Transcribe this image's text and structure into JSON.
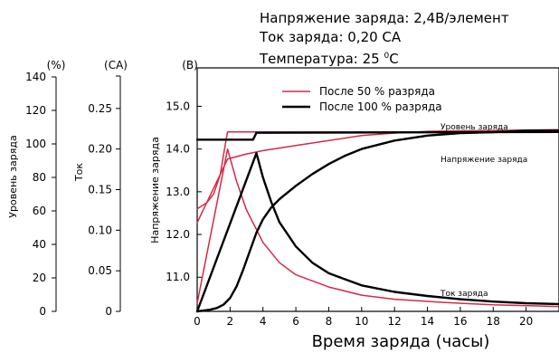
{
  "conditions": {
    "voltage": "Напряжение заряда: 2,4В/элемент",
    "current": "Ток заряда: 0,20 СА",
    "temp_prefix": "Температура: 25 ",
    "temp_sup": "0",
    "temp_suffix": "С"
  },
  "chart_data": {
    "type": "line",
    "xlabel": "Время заряда (часы)",
    "xlim": [
      0,
      22
    ],
    "x_ticks": [
      0,
      2,
      4,
      6,
      8,
      10,
      12,
      14,
      16,
      18,
      20
    ],
    "axes": {
      "charge": {
        "unit": "(%)",
        "label": "Уровень заряда",
        "range": [
          0,
          140
        ],
        "ticks": [
          0,
          20,
          40,
          60,
          80,
          100,
          120,
          140
        ]
      },
      "current": {
        "unit": "(СА)",
        "label": "Ток",
        "range": [
          0,
          0.3
        ],
        "ticks": [
          "0",
          "0.05",
          "0.10",
          "0.15",
          "0.20",
          "0.25"
        ]
      },
      "voltage": {
        "unit": "(В)",
        "label": "Напряжение заряда",
        "range": [
          10.2,
          15.9
        ],
        "ticks": [
          "11.0",
          "12.0",
          "13.0",
          "14.0",
          "15.0"
        ]
      }
    },
    "legend": [
      {
        "name": "После 50 % разряда",
        "color": "#d42a46"
      },
      {
        "name": "После 100 % разряда",
        "color": "#000000"
      }
    ],
    "annotations": [
      "Уровень заряда",
      "Напряжение заряда",
      "Ток заряда"
    ],
    "series": [
      {
        "scenario": "50",
        "quantity": "voltage",
        "color": "#d42a46",
        "points": [
          [
            0,
            12.6
          ],
          [
            0.6,
            12.75
          ],
          [
            1.0,
            12.95
          ],
          [
            1.4,
            13.4
          ],
          [
            1.75,
            14.2
          ],
          [
            1.85,
            14.4
          ],
          [
            22,
            14.4
          ]
        ]
      },
      {
        "scenario": "50",
        "quantity": "current",
        "color": "#d42a46",
        "points": [
          [
            0,
            0.01
          ],
          [
            1.85,
            0.2
          ],
          [
            2.4,
            0.16
          ],
          [
            3.0,
            0.125
          ],
          [
            4.0,
            0.085
          ],
          [
            5.0,
            0.06
          ],
          [
            6.0,
            0.045
          ],
          [
            8.0,
            0.03
          ],
          [
            10,
            0.02
          ],
          [
            12,
            0.015
          ],
          [
            15,
            0.011
          ],
          [
            18,
            0.008
          ],
          [
            22,
            0.006
          ]
        ]
      },
      {
        "scenario": "50",
        "quantity": "charge",
        "color": "#d42a46",
        "points": [
          [
            0,
            53
          ],
          [
            1.85,
            91
          ],
          [
            3,
            94
          ],
          [
            4,
            96
          ],
          [
            5,
            97.5
          ],
          [
            6,
            99
          ],
          [
            8,
            102
          ],
          [
            10,
            105
          ],
          [
            12,
            106.5
          ],
          [
            14,
            107.5
          ],
          [
            18,
            108
          ],
          [
            22,
            108.5
          ]
        ]
      },
      {
        "scenario": "100",
        "quantity": "voltage",
        "color": "#000000",
        "points": [
          [
            0,
            14.22
          ],
          [
            3.4,
            14.22
          ],
          [
            3.6,
            14.38
          ],
          [
            22,
            14.4
          ]
        ]
      },
      {
        "scenario": "100",
        "quantity": "current",
        "color": "#000000",
        "points": [
          [
            0,
            0.0
          ],
          [
            3.6,
            0.195
          ],
          [
            4.0,
            0.165
          ],
          [
            4.5,
            0.135
          ],
          [
            5.0,
            0.11
          ],
          [
            6.0,
            0.08
          ],
          [
            7.0,
            0.06
          ],
          [
            8.0,
            0.047
          ],
          [
            10,
            0.032
          ],
          [
            12,
            0.024
          ],
          [
            14,
            0.019
          ],
          [
            16,
            0.015
          ],
          [
            18,
            0.012
          ],
          [
            20,
            0.01
          ],
          [
            22,
            0.009
          ]
        ]
      },
      {
        "scenario": "100",
        "quantity": "charge",
        "color": "#000000",
        "points": [
          [
            0,
            0
          ],
          [
            0.4,
            0.5
          ],
          [
            0.8,
            1
          ],
          [
            1.2,
            2
          ],
          [
            1.6,
            4
          ],
          [
            2.0,
            8
          ],
          [
            2.4,
            15
          ],
          [
            2.8,
            25
          ],
          [
            3.2,
            36
          ],
          [
            3.6,
            47
          ],
          [
            4.0,
            55
          ],
          [
            4.5,
            62
          ],
          [
            5,
            67
          ],
          [
            6,
            75
          ],
          [
            7,
            82
          ],
          [
            8,
            88
          ],
          [
            9,
            93
          ],
          [
            10,
            97
          ],
          [
            12,
            102
          ],
          [
            14,
            105
          ],
          [
            16,
            106.5
          ],
          [
            18,
            107
          ],
          [
            20,
            108
          ],
          [
            22,
            108
          ]
        ]
      }
    ]
  }
}
